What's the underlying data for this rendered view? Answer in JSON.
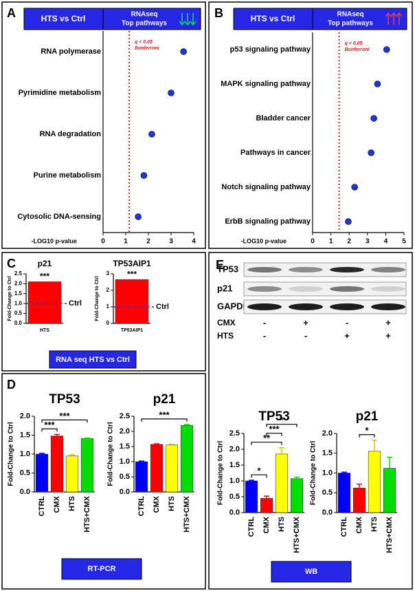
{
  "panels": [
    {
      "label": "A",
      "title": "HTS vs Ctrl",
      "subtitle": [
        "RNAseq",
        "Top pathways"
      ]
    },
    {
      "label": "B",
      "title": "HTS vs Ctrl",
      "subtitle": [
        "RNAseq",
        "Top pathways"
      ]
    },
    {
      "label": "C",
      "footer": "RNA seq HTS vs Ctrl"
    },
    {
      "label": "D",
      "footer": "RT-PCR"
    },
    {
      "label": "E",
      "footer": "WB",
      "blot": {
        "rows": [
          "TP53",
          "p21",
          "GAPDH"
        ],
        "conditions": [
          {
            "name": "CMX",
            "signs": [
              "-",
              "+",
              "-",
              "+"
            ]
          },
          {
            "name": "HTS",
            "signs": [
              "-",
              "-",
              "+",
              "+"
            ]
          }
        ]
      }
    }
  ],
  "chart_data": [
    {
      "type": "dot",
      "categories": [
        "RNA polymerase",
        "Pyrimidine metabolism",
        "RNA degradation",
        "Purine metabolism",
        "Cytosolic DNA-sensing"
      ],
      "values": [
        3.55,
        3.0,
        2.15,
        1.8,
        1.55
      ],
      "color": "#1f35d6",
      "xlim": [
        0,
        4
      ],
      "xticks": [
        0,
        1,
        2,
        3,
        4
      ],
      "xlabel": "-LOG10 p-value",
      "threshold": 1.15,
      "threshold_label": [
        "q < 0.05",
        "Bonferroni"
      ]
    },
    {
      "type": "dot",
      "categories": [
        "p53 signaling pathway",
        "MAPK signaling pathway",
        "Bladder cancer",
        "Pathways in cancer",
        "Notch signaling pathway",
        "ErbB signaling pathway"
      ],
      "values": [
        4.05,
        3.55,
        3.35,
        3.2,
        2.3,
        1.95
      ],
      "color": "#1f35d6",
      "xlim": [
        0,
        5
      ],
      "xticks": [
        0,
        1,
        2,
        3,
        4,
        5
      ],
      "xlabel": "-LOG10 p-value",
      "threshold": 1.45,
      "threshold_label": [
        "q < 0.05",
        "Bonferroni"
      ]
    },
    {
      "type": "bar",
      "title": "p21",
      "categories": [
        "HTS"
      ],
      "values": [
        2.1
      ],
      "colors": [
        "#ff0000"
      ],
      "ylabel": "Fold-Change to Ctrl",
      "ylim": [
        0,
        2.5
      ],
      "yticks": [
        {
          "value": 0,
          "label": "0.0"
        },
        0.5,
        {
          "value": 1,
          "label": "1.0"
        },
        1.5,
        {
          "value": 2,
          "label": "2.0"
        },
        2.5
      ],
      "annotation": "***",
      "reference": {
        "value": 1,
        "label": "Ctrl"
      }
    },
    {
      "type": "bar",
      "title": "TP53AIP1",
      "categories": [
        "TP53AIP1"
      ],
      "values": [
        2.65
      ],
      "colors": [
        "#ff0000"
      ],
      "ylabel": "Fold-Change to Ctrl",
      "ylim": [
        0,
        3
      ],
      "yticks": [
        0,
        1,
        2,
        3
      ],
      "annotation": "***",
      "reference": {
        "value": 1,
        "label": "Ctrl"
      }
    },
    {
      "type": "bar",
      "title": "TP53",
      "categories": [
        "CTRL",
        "CMX",
        "HTS",
        "HTS+CMX"
      ],
      "values": [
        1.0,
        1.48,
        0.95,
        1.41
      ],
      "errors": [
        0.02,
        0.04,
        0.03,
        0.01
      ],
      "colors": [
        "#0000ff",
        "#ff0000",
        "#ffff00",
        "#00dd00"
      ],
      "ylabel": "Fold-Change to Ctrl",
      "ylim": [
        0,
        2
      ],
      "yticks": [
        {
          "value": 0,
          "label": "0.0"
        },
        0.5,
        {
          "value": 1,
          "label": "1.0"
        },
        1.5,
        {
          "value": 2,
          "label": "2.0"
        }
      ],
      "brackets": [
        {
          "label": "***",
          "from": 0,
          "to": 1
        },
        {
          "label": "***",
          "from": 0,
          "to": 3
        }
      ]
    },
    {
      "type": "bar",
      "title": "p21",
      "categories": [
        "CTRL",
        "CMX",
        "HTS",
        "HTS+CMX"
      ],
      "values": [
        1.0,
        1.57,
        1.55,
        2.2
      ],
      "errors": [
        0.02,
        0.02,
        0.02,
        0.03
      ],
      "colors": [
        "#0000ff",
        "#ff0000",
        "#ffff00",
        "#00dd00"
      ],
      "ylabel": "Fold-Change to Ctrl",
      "ylim": [
        0,
        2.5
      ],
      "yticks": [
        {
          "value": 0,
          "label": "0.0"
        },
        0.5,
        {
          "value": 1,
          "label": "1.0"
        },
        1.5,
        {
          "value": 2,
          "label": "2.0"
        },
        2.5
      ],
      "brackets": [
        {
          "label": "***",
          "from": 0,
          "to": 3
        }
      ]
    },
    {
      "type": "bar",
      "title": "TP53",
      "categories": [
        "CTRL",
        "CMX",
        "HTS",
        "HTS+CMX"
      ],
      "values": [
        1.0,
        0.45,
        1.85,
        1.07
      ],
      "errors": [
        0.02,
        0.07,
        0.2,
        0.05
      ],
      "colors": [
        "#0000ff",
        "#ff0000",
        "#ffff00",
        "#00dd00"
      ],
      "ylabel": "Fold-Change to Ctrl",
      "ylim": [
        0,
        2.5
      ],
      "yticks": [
        {
          "value": 0,
          "label": "0.0"
        },
        0.5,
        {
          "value": 1,
          "label": "1.0"
        },
        1.5,
        {
          "value": 2,
          "label": "2.0"
        },
        2.5
      ],
      "brackets": [
        {
          "label": "*",
          "from": 0,
          "to": 1
        },
        {
          "label": "**",
          "from": 0,
          "to": 2
        },
        {
          "label": "***",
          "from": 1,
          "to": 2
        },
        {
          "label": "*",
          "from": 1,
          "to": 3
        }
      ]
    },
    {
      "type": "bar",
      "title": "p21",
      "categories": [
        "CTRL",
        "CMX",
        "HTS",
        "HTS+CMX"
      ],
      "values": [
        1.0,
        0.62,
        1.55,
        1.12
      ],
      "errors": [
        0.02,
        0.1,
        0.28,
        0.28
      ],
      "colors": [
        "#0000ff",
        "#ff0000",
        "#ffff00",
        "#00dd00"
      ],
      "ylabel": "Fold-Change to Ctrl",
      "ylim": [
        0,
        2
      ],
      "yticks": [
        {
          "value": 0,
          "label": "0.0"
        },
        0.5,
        {
          "value": 1,
          "label": "1.0"
        },
        1.5,
        {
          "value": 2,
          "label": "2.0"
        }
      ],
      "brackets": [
        {
          "label": "*",
          "from": 1,
          "to": 2
        }
      ]
    }
  ]
}
